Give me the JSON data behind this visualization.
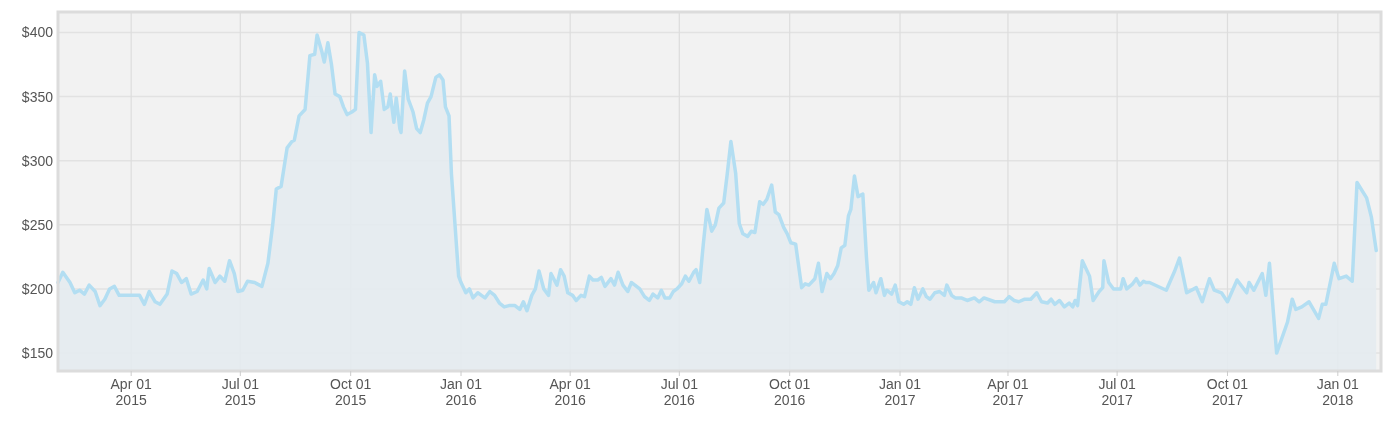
{
  "chart_data": {
    "type": "area",
    "grid": true,
    "line_style": "solid",
    "xlim": [
      "2015-01-30",
      "2018-02-06"
    ],
    "ylim": [
      136,
      416
    ],
    "xticks": [
      {
        "value": "2015-04-01",
        "label": "Apr 01\n2015"
      },
      {
        "value": "2015-07-01",
        "label": "Jul 01\n2015"
      },
      {
        "value": "2015-10-01",
        "label": "Oct 01\n2015"
      },
      {
        "value": "2016-01-01",
        "label": "Jan 01\n2016"
      },
      {
        "value": "2016-04-01",
        "label": "Apr 01\n2016"
      },
      {
        "value": "2016-07-01",
        "label": "Jul 01\n2016"
      },
      {
        "value": "2016-10-01",
        "label": "Oct 01\n2016"
      },
      {
        "value": "2017-01-01",
        "label": "Jan 01\n2017"
      },
      {
        "value": "2017-04-01",
        "label": "Apr 01\n2017"
      },
      {
        "value": "2017-07-01",
        "label": "Jul 01\n2017"
      },
      {
        "value": "2017-10-01",
        "label": "Oct 01\n2017"
      },
      {
        "value": "2018-01-01",
        "label": "Jan 01\n2018"
      }
    ],
    "yticks": [
      {
        "value": 150,
        "label": "$150"
      },
      {
        "value": 200,
        "label": "$200"
      },
      {
        "value": 250,
        "label": "$250"
      },
      {
        "value": 300,
        "label": "$300"
      },
      {
        "value": 350,
        "label": "$350"
      },
      {
        "value": 400,
        "label": "$400"
      }
    ],
    "x": [
      "2015-01-30",
      "2015-02-03",
      "2015-02-09",
      "2015-02-13",
      "2015-02-17",
      "2015-02-21",
      "2015-02-25",
      "2015-03-02",
      "2015-03-06",
      "2015-03-10",
      "2015-03-14",
      "2015-03-18",
      "2015-03-22",
      "2015-04-01",
      "2015-04-08",
      "2015-04-12",
      "2015-04-16",
      "2015-04-21",
      "2015-04-25",
      "2015-05-01",
      "2015-05-05",
      "2015-05-09",
      "2015-05-13",
      "2015-05-17",
      "2015-05-21",
      "2015-05-26",
      "2015-05-31",
      "2015-06-03",
      "2015-06-05",
      "2015-06-10",
      "2015-06-14",
      "2015-06-18",
      "2015-06-22",
      "2015-06-26",
      "2015-06-29",
      "2015-07-03",
      "2015-07-07",
      "2015-07-13",
      "2015-07-19",
      "2015-07-24",
      "2015-07-28",
      "2015-07-31",
      "2015-08-04",
      "2015-08-09",
      "2015-08-13",
      "2015-08-15",
      "2015-08-19",
      "2015-08-24",
      "2015-08-28",
      "2015-09-01",
      "2015-09-03",
      "2015-09-07",
      "2015-09-09",
      "2015-09-12",
      "2015-09-15",
      "2015-09-18",
      "2015-09-22",
      "2015-09-25",
      "2015-09-28",
      "2015-10-02",
      "2015-10-05",
      "2015-10-08",
      "2015-10-12",
      "2015-10-15",
      "2015-10-18",
      "2015-10-21",
      "2015-10-23",
      "2015-10-26",
      "2015-10-29",
      "2015-11-01",
      "2015-11-03",
      "2015-11-06",
      "2015-11-08",
      "2015-11-11",
      "2015-11-12",
      "2015-11-15",
      "2015-11-18",
      "2015-11-22",
      "2015-11-25",
      "2015-11-28",
      "2015-12-01",
      "2015-12-04",
      "2015-12-07",
      "2015-12-11",
      "2015-12-14",
      "2015-12-17",
      "2015-12-19",
      "2015-12-22",
      "2015-12-24",
      "2015-12-27",
      "2015-12-30",
      "2016-01-01",
      "2016-01-05",
      "2016-01-08",
      "2016-01-11",
      "2016-01-15",
      "2016-01-18",
      "2016-01-21",
      "2016-01-25",
      "2016-01-29",
      "2016-02-02",
      "2016-02-06",
      "2016-02-10",
      "2016-02-15",
      "2016-02-19",
      "2016-02-22",
      "2016-02-25",
      "2016-02-29",
      "2016-03-03",
      "2016-03-06",
      "2016-03-10",
      "2016-03-14",
      "2016-03-16",
      "2016-03-21",
      "2016-03-24",
      "2016-03-27",
      "2016-03-30",
      "2016-04-03",
      "2016-04-06",
      "2016-04-10",
      "2016-04-13",
      "2016-04-17",
      "2016-04-20",
      "2016-04-24",
      "2016-04-27",
      "2016-04-30",
      "2016-05-05",
      "2016-05-08",
      "2016-05-11",
      "2016-05-15",
      "2016-05-19",
      "2016-05-22",
      "2016-05-25",
      "2016-05-29",
      "2016-06-02",
      "2016-06-06",
      "2016-06-09",
      "2016-06-13",
      "2016-06-16",
      "2016-06-19",
      "2016-06-23",
      "2016-06-26",
      "2016-06-29",
      "2016-07-03",
      "2016-07-06",
      "2016-07-09",
      "2016-07-13",
      "2016-07-15",
      "2016-07-18",
      "2016-07-21",
      "2016-07-24",
      "2016-07-28",
      "2016-07-31",
      "2016-08-03",
      "2016-08-07",
      "2016-08-10",
      "2016-08-13",
      "2016-08-17",
      "2016-08-20",
      "2016-08-23",
      "2016-08-27",
      "2016-08-30",
      "2016-09-02",
      "2016-09-06",
      "2016-09-09",
      "2016-09-12",
      "2016-09-16",
      "2016-09-19",
      "2016-09-22",
      "2016-09-26",
      "2016-09-29",
      "2016-10-02",
      "2016-10-06",
      "2016-10-07",
      "2016-10-11",
      "2016-10-14",
      "2016-10-17",
      "2016-10-22",
      "2016-10-25",
      "2016-10-28",
      "2016-11-01",
      "2016-11-04",
      "2016-11-07",
      "2016-11-10",
      "2016-11-13",
      "2016-11-16",
      "2016-11-19",
      "2016-11-21",
      "2016-11-24",
      "2016-11-27",
      "2016-12-01",
      "2016-12-04",
      "2016-12-06",
      "2016-12-10",
      "2016-12-12",
      "2016-12-16",
      "2016-12-19",
      "2016-12-21",
      "2016-12-25",
      "2016-12-28",
      "2016-12-31",
      "2017-01-04",
      "2017-01-07",
      "2017-01-10",
      "2017-01-13",
      "2017-01-16",
      "2017-01-20",
      "2017-01-23",
      "2017-01-26",
      "2017-01-30",
      "2017-02-03",
      "2017-02-07",
      "2017-02-09",
      "2017-02-13",
      "2017-02-16",
      "2017-02-21",
      "2017-02-26",
      "2017-03-04",
      "2017-03-08",
      "2017-03-12",
      "2017-03-21",
      "2017-03-29",
      "2017-04-02",
      "2017-04-06",
      "2017-04-10",
      "2017-04-15",
      "2017-04-20",
      "2017-04-25",
      "2017-04-29",
      "2017-05-04",
      "2017-05-07",
      "2017-05-10",
      "2017-05-14",
      "2017-05-18",
      "2017-05-22",
      "2017-05-25",
      "2017-05-27",
      "2017-05-29",
      "2017-06-02",
      "2017-06-08",
      "2017-06-11",
      "2017-06-16",
      "2017-06-19",
      "2017-06-20",
      "2017-06-24",
      "2017-06-28",
      "2017-07-01",
      "2017-07-04",
      "2017-07-06",
      "2017-07-09",
      "2017-07-14",
      "2017-07-17",
      "2017-07-20",
      "2017-07-23",
      "2017-07-25",
      "2017-07-28",
      "2017-08-11",
      "2017-08-18",
      "2017-08-22",
      "2017-08-28",
      "2017-09-05",
      "2017-09-10",
      "2017-09-16",
      "2017-09-20",
      "2017-09-26",
      "2017-10-01",
      "2017-10-09",
      "2017-10-17",
      "2017-10-19",
      "2017-10-23",
      "2017-10-30",
      "2017-11-02",
      "2017-11-05",
      "2017-11-11",
      "2017-11-20",
      "2017-11-24",
      "2017-11-27",
      "2017-12-02",
      "2017-12-08",
      "2017-12-16",
      "2017-12-19",
      "2017-12-22",
      "2017-12-29",
      "2018-01-02",
      "2018-01-08",
      "2018-01-13",
      "2018-01-17",
      "2018-01-25",
      "2018-01-29",
      "2018-02-02"
    ],
    "series": [
      {
        "color": "#b3def2",
        "values": [
          205,
          213,
          205,
          197,
          199,
          196,
          203,
          198,
          187,
          192,
          200,
          202,
          195,
          195,
          195,
          188,
          198,
          190,
          188,
          196,
          214,
          212,
          205,
          208,
          196,
          198,
          207,
          200,
          216,
          205,
          210,
          206,
          222,
          212,
          198,
          199,
          206,
          205,
          202,
          220,
          250,
          278,
          280,
          310,
          315,
          316,
          335,
          340,
          382,
          383,
          398,
          385,
          377,
          392,
          375,
          352,
          350,
          342,
          336,
          338,
          340,
          400,
          398,
          376,
          322,
          367,
          358,
          362,
          340,
          342,
          352,
          330,
          349,
          325,
          322,
          370,
          348,
          338,
          325,
          322,
          332,
          345,
          350,
          365,
          367,
          363,
          342,
          335,
          290,
          250,
          210,
          205,
          197,
          200,
          193,
          197,
          195,
          193,
          198,
          195,
          189,
          186,
          187,
          187,
          184,
          190,
          183,
          195,
          200,
          214,
          200,
          195,
          212,
          203,
          215,
          210,
          197,
          195,
          191,
          195,
          194,
          210,
          207,
          207,
          209,
          202,
          208,
          203,
          213,
          203,
          198,
          205,
          203,
          200,
          194,
          191,
          196,
          193,
          199,
          193,
          193,
          198,
          200,
          204,
          210,
          206,
          213,
          215,
          205,
          235,
          262,
          245,
          250,
          263,
          267,
          290,
          315,
          290,
          251,
          243,
          241,
          245,
          244,
          268,
          266,
          270,
          281,
          260,
          258,
          248,
          243,
          236,
          235,
          228,
          201,
          204,
          203,
          208,
          220,
          198,
          212,
          208,
          212,
          218,
          232,
          234,
          257,
          262,
          288,
          272,
          274,
          225,
          199,
          205,
          197,
          208,
          195,
          199,
          196,
          203,
          190,
          188,
          190,
          188,
          201,
          192,
          200,
          194,
          192,
          197,
          198,
          195,
          203,
          195,
          193,
          193,
          191,
          193,
          190,
          193,
          190,
          190,
          194,
          191,
          190,
          192,
          192,
          197,
          190,
          189,
          192,
          188,
          191,
          186,
          189,
          186,
          191,
          187,
          222,
          210,
          191,
          198,
          201,
          222,
          205,
          200,
          200,
          200,
          208,
          200,
          204,
          208,
          203,
          206,
          205,
          205,
          199,
          214,
          224,
          197,
          201,
          190,
          208,
          199,
          197,
          190,
          207,
          197,
          205,
          199,
          212,
          195,
          220,
          150,
          174,
          192,
          184,
          186,
          190,
          177,
          188,
          188,
          220,
          208,
          210,
          206,
          283,
          271,
          256,
          230
        ]
      }
    ]
  }
}
